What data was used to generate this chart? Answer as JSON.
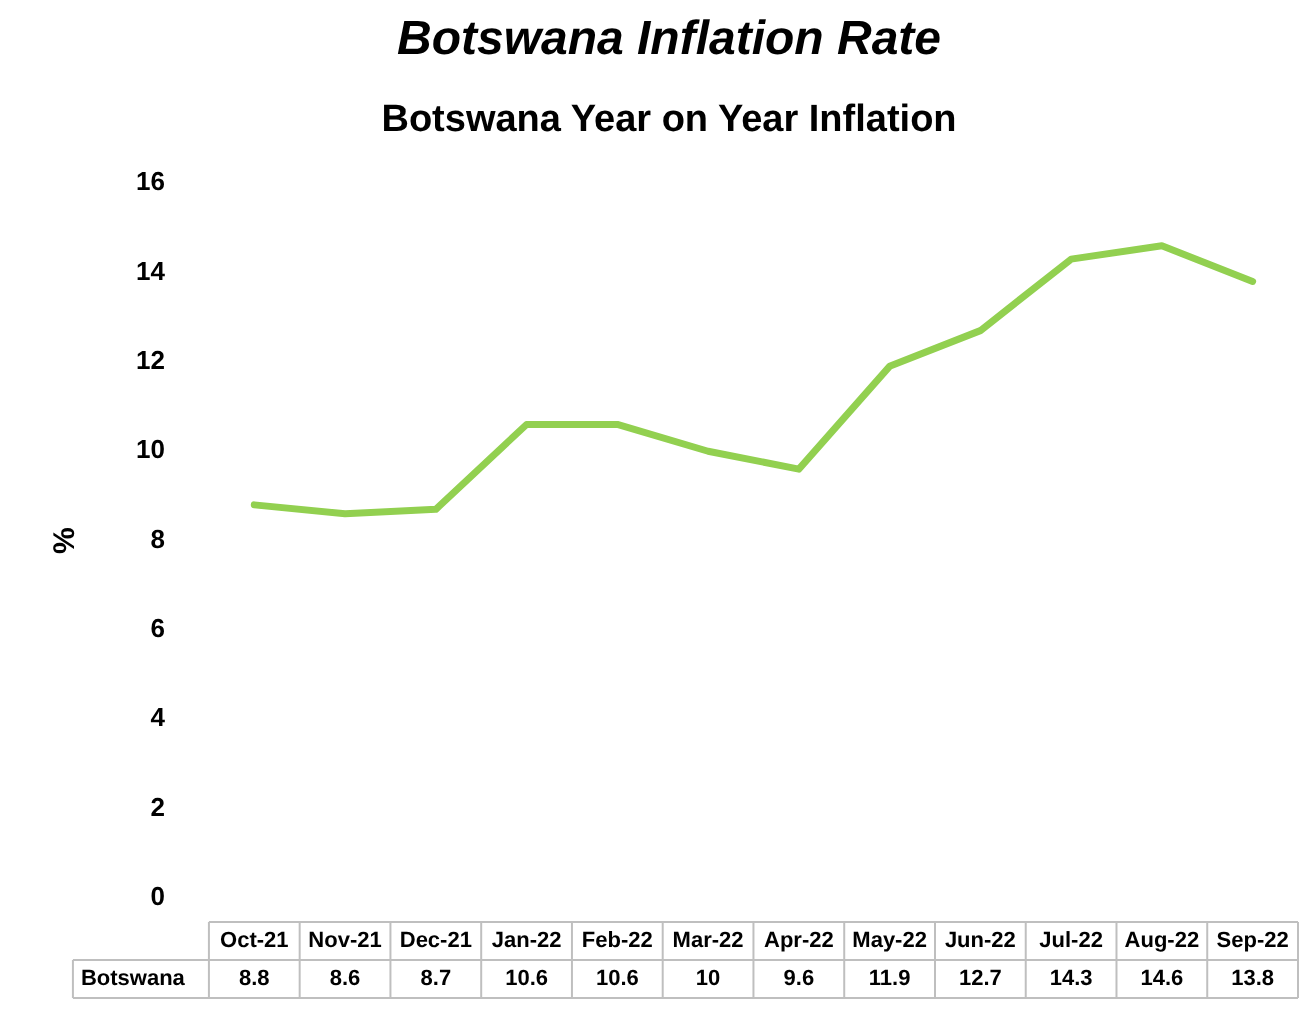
{
  "chart_data": {
    "type": "line",
    "title": "Botswana Inflation Rate",
    "subtitle": "Botswana Year on Year Inflation",
    "ylabel": "%",
    "categories": [
      "Oct-21",
      "Nov-21",
      "Dec-21",
      "Jan-22",
      "Feb-22",
      "Mar-22",
      "Apr-22",
      "May-22",
      "Jun-22",
      "Jul-22",
      "Aug-22",
      "Sep-22"
    ],
    "series": [
      {
        "name": "Botswana",
        "color": "#92d050",
        "values": [
          8.8,
          8.6,
          8.7,
          10.6,
          10.6,
          10,
          9.6,
          11.9,
          12.7,
          14.3,
          14.6,
          13.8
        ]
      }
    ],
    "ylim": [
      0,
      16
    ],
    "yticks": [
      0,
      2,
      4,
      6,
      8,
      10,
      12,
      14,
      16
    ],
    "grid": false,
    "legend": false,
    "marker": "none",
    "line_style": "solid",
    "data_labels": true
  }
}
